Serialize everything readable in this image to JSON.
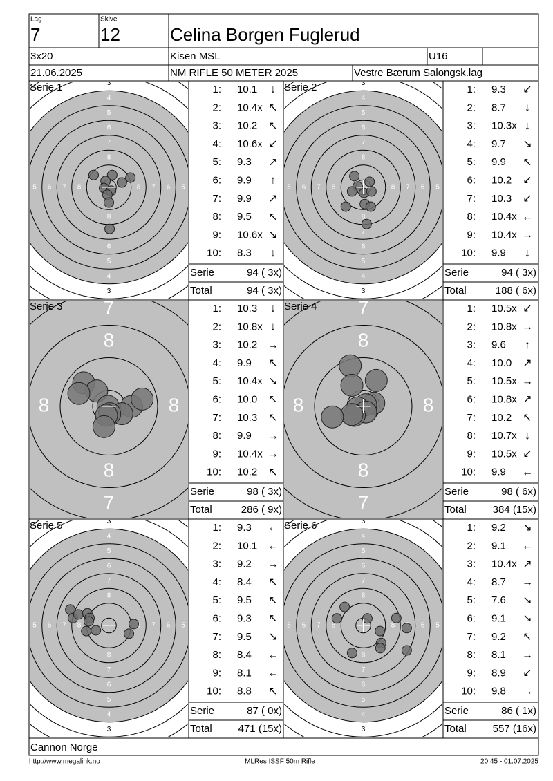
{
  "header": {
    "lag_label": "Lag",
    "lag": "7",
    "skive_label": "Skive",
    "skive": "12",
    "name": "Celina Borgen Fuglerud",
    "program": "3x20",
    "club": "Kisen MSL",
    "class": "U16",
    "date": "21.06.2025",
    "event": "NM RIFLE 50 METER 2025",
    "organizer": "Vestre Bærum Salongsk.lag"
  },
  "ring_numbers": [
    3,
    4,
    5,
    6,
    7,
    8
  ],
  "series": [
    {
      "title": "Serie 1",
      "zoom": false,
      "shots": [
        {
          "number": "1:",
          "score": "10.1",
          "direction": "↓"
        },
        {
          "number": "2:",
          "score": "10.4x",
          "direction": "↖"
        },
        {
          "number": "3:",
          "score": "10.2",
          "direction": "↖"
        },
        {
          "number": "4:",
          "score": "10.6x",
          "direction": "↙"
        },
        {
          "number": "5:",
          "score": "9.3",
          "direction": "↗"
        },
        {
          "number": "6:",
          "score": "9.9",
          "direction": "↑"
        },
        {
          "number": "7:",
          "score": "9.9",
          "direction": "↗"
        },
        {
          "number": "8:",
          "score": "9.5",
          "direction": "↖"
        },
        {
          "number": "9:",
          "score": "10.6x",
          "direction": "↘"
        },
        {
          "number": "10:",
          "score": "8.3",
          "direction": "↓"
        }
      ],
      "holes": [
        [
          -4.1,
          3.3
        ],
        [
          0.9,
          3.3
        ],
        [
          5.8,
          2.6
        ],
        [
          -0.9,
          1.7
        ],
        [
          3.5,
          1.3
        ],
        [
          -1.3,
          -0.2
        ],
        [
          0.6,
          -0.9
        ],
        [
          -0.4,
          -2.0
        ],
        [
          0,
          -4.1
        ],
        [
          0.2,
          -11.2
        ]
      ],
      "serie_label": "Serie",
      "serie": "94 ( 3x)",
      "total_label": "Total",
      "total": "94 ( 3x)"
    },
    {
      "title": "Serie 2",
      "zoom": false,
      "shots": [
        {
          "number": "1:",
          "score": "9.3",
          "direction": "↙"
        },
        {
          "number": "2:",
          "score": "8.7",
          "direction": "↓"
        },
        {
          "number": "3:",
          "score": "10.3x",
          "direction": "↓"
        },
        {
          "number": "4:",
          "score": "9.7",
          "direction": "↘"
        },
        {
          "number": "5:",
          "score": "9.9",
          "direction": "↖"
        },
        {
          "number": "6:",
          "score": "10.2",
          "direction": "↙"
        },
        {
          "number": "7:",
          "score": "10.3",
          "direction": "↙"
        },
        {
          "number": "8:",
          "score": "10.4x",
          "direction": "←"
        },
        {
          "number": "9:",
          "score": "10.4x",
          "direction": "→"
        },
        {
          "number": "10:",
          "score": "9.9",
          "direction": "↓"
        }
      ],
      "holes": [
        [
          -2.4,
          3.0
        ],
        [
          1.7,
          1.5
        ],
        [
          -1.5,
          0.2
        ],
        [
          -3.0,
          -1.1
        ],
        [
          0.2,
          -1.5
        ],
        [
          2.2,
          -1.1
        ],
        [
          -4.7,
          -5.2
        ],
        [
          0.4,
          -4.5
        ],
        [
          2.0,
          -5.2
        ],
        [
          0.9,
          -9.9
        ]
      ],
      "serie_label": "Serie",
      "serie": "94 ( 3x)",
      "total_label": "Total",
      "total": "188 ( 6x)"
    },
    {
      "title": "Serie 3",
      "zoom": true,
      "shots": [
        {
          "number": "1:",
          "score": "10.3",
          "direction": "↓"
        },
        {
          "number": "2:",
          "score": "10.8x",
          "direction": "↓"
        },
        {
          "number": "3:",
          "score": "10.2",
          "direction": "→"
        },
        {
          "number": "4:",
          "score": "9.9",
          "direction": "↖"
        },
        {
          "number": "5:",
          "score": "10.4x",
          "direction": "↘"
        },
        {
          "number": "6:",
          "score": "10.0",
          "direction": "↖"
        },
        {
          "number": "7:",
          "score": "10.3",
          "direction": "↖"
        },
        {
          "number": "8:",
          "score": "9.9",
          "direction": "→"
        },
        {
          "number": "9:",
          "score": "10.4x",
          "direction": "→"
        },
        {
          "number": "10:",
          "score": "10.2",
          "direction": "↖"
        }
      ],
      "holes": [
        [
          -3.1,
          2.9
        ],
        [
          -1.5,
          1.9
        ],
        [
          -3.7,
          1.6
        ],
        [
          -0.1,
          0
        ],
        [
          2.8,
          0
        ],
        [
          4.1,
          0.9
        ],
        [
          1.6,
          -0.9
        ],
        [
          0.1,
          -0.9
        ],
        [
          -0.3,
          -1.1
        ],
        [
          -0.6,
          -2.5
        ]
      ],
      "serie_label": "Serie",
      "serie": "98 ( 3x)",
      "total_label": "Total",
      "total": "286 ( 9x)"
    },
    {
      "title": "Serie 4",
      "zoom": true,
      "shots": [
        {
          "number": "1:",
          "score": "10.5x",
          "direction": "↙"
        },
        {
          "number": "2:",
          "score": "10.8x",
          "direction": "→"
        },
        {
          "number": "3:",
          "score": "9.6",
          "direction": "↑"
        },
        {
          "number": "4:",
          "score": "10.0",
          "direction": "↗"
        },
        {
          "number": "5:",
          "score": "10.5x",
          "direction": "→"
        },
        {
          "number": "6:",
          "score": "10.8x",
          "direction": "↗"
        },
        {
          "number": "7:",
          "score": "10.2",
          "direction": "↖"
        },
        {
          "number": "8:",
          "score": "10.7x",
          "direction": "↓"
        },
        {
          "number": "9:",
          "score": "10.5x",
          "direction": "↙"
        },
        {
          "number": "10:",
          "score": "9.9",
          "direction": "←"
        }
      ],
      "holes": [
        [
          -1.6,
          5.0
        ],
        [
          1.6,
          3.2
        ],
        [
          -1.4,
          2.6
        ],
        [
          1.3,
          0.4
        ],
        [
          0.3,
          0.2
        ],
        [
          -0.7,
          -0.2
        ],
        [
          0.3,
          -0.7
        ],
        [
          -1.1,
          -1.1
        ],
        [
          -1.4,
          -1.0
        ],
        [
          -3.8,
          -1.3
        ]
      ],
      "serie_label": "Serie",
      "serie": "98 ( 6x)",
      "total_label": "Total",
      "total": "384 (15x)"
    },
    {
      "title": "Serie 5",
      "zoom": false,
      "shots": [
        {
          "number": "1:",
          "score": "9.3",
          "direction": "←"
        },
        {
          "number": "2:",
          "score": "10.1",
          "direction": "←"
        },
        {
          "number": "3:",
          "score": "9.2",
          "direction": "→"
        },
        {
          "number": "4:",
          "score": "8.4",
          "direction": "↖"
        },
        {
          "number": "5:",
          "score": "9.5",
          "direction": "↖"
        },
        {
          "number": "6:",
          "score": "9.3",
          "direction": "↖"
        },
        {
          "number": "7:",
          "score": "9.5",
          "direction": "↘"
        },
        {
          "number": "8:",
          "score": "8.4",
          "direction": "←"
        },
        {
          "number": "9:",
          "score": "8.1",
          "direction": "←"
        },
        {
          "number": "10:",
          "score": "8.8",
          "direction": "↖"
        }
      ],
      "holes": [
        [
          -10.4,
          4.3
        ],
        [
          -9.7,
          2.0
        ],
        [
          -8.2,
          3.0
        ],
        [
          -5.8,
          3.3
        ],
        [
          -5.2,
          2.0
        ],
        [
          -6.1,
          -1.5
        ],
        [
          -3.5,
          -1.3
        ],
        [
          6.7,
          0.4
        ],
        [
          5.4,
          -2.2
        ],
        [
          -5.4,
          1.1
        ]
      ],
      "serie_label": "Serie",
      "serie": "87 ( 0x)",
      "total_label": "Total",
      "total": "471 (15x)"
    },
    {
      "title": "Serie 6",
      "zoom": false,
      "shots": [
        {
          "number": "1:",
          "score": "9.2",
          "direction": "↘"
        },
        {
          "number": "2:",
          "score": "9.1",
          "direction": "←"
        },
        {
          "number": "3:",
          "score": "10.4x",
          "direction": "↗"
        },
        {
          "number": "4:",
          "score": "8.7",
          "direction": "→"
        },
        {
          "number": "5:",
          "score": "7.6",
          "direction": "↘"
        },
        {
          "number": "6:",
          "score": "9.1",
          "direction": "↘"
        },
        {
          "number": "7:",
          "score": "9.2",
          "direction": "↖"
        },
        {
          "number": "8:",
          "score": "8.1",
          "direction": "→"
        },
        {
          "number": "9:",
          "score": "8.9",
          "direction": "↙"
        },
        {
          "number": "10:",
          "score": "9.8",
          "direction": "→"
        }
      ],
      "holes": [
        [
          -5.0,
          5.0
        ],
        [
          -7.1,
          1.9
        ],
        [
          1.1,
          1.9
        ],
        [
          8.9,
          2.0
        ],
        [
          11.7,
          -0.7
        ],
        [
          4.5,
          -1.5
        ],
        [
          4.8,
          -4.7
        ],
        [
          4.6,
          -6.1
        ],
        [
          -3.0,
          -7.4
        ],
        [
          11.7,
          -6.7
        ]
      ],
      "serie_label": "Serie",
      "serie": "86 ( 1x)",
      "total_label": "Total",
      "total": "557 (16x)"
    }
  ],
  "footer": {
    "sponsor": "Cannon Norge",
    "url": "http://www.megalink.no",
    "software": "MLRes ISSF 50m Rifle",
    "timestamp": "20:45 - 01.07.2025"
  }
}
